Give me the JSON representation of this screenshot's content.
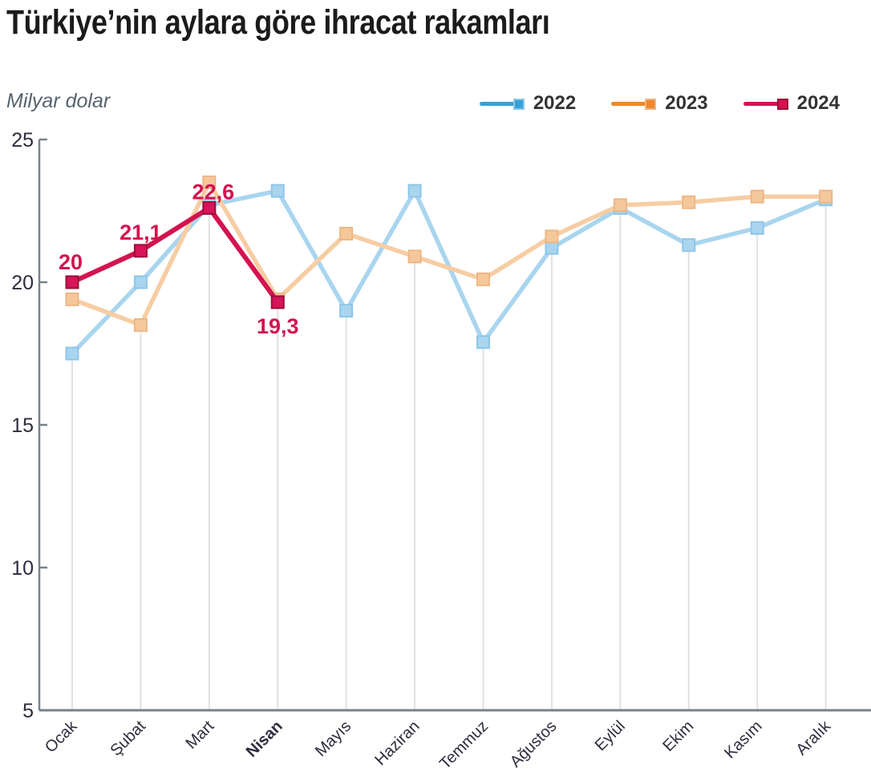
{
  "title": "Türkiye’nin aylara göre ihracat rakamları",
  "chart_data": {
    "type": "line",
    "title": "Türkiye’nin aylara göre ihracat rakamları",
    "ylabel": "Milyar dolar",
    "xlabel": "",
    "ylim": [
      5,
      25
    ],
    "yticks": [
      5,
      10,
      15,
      20,
      25
    ],
    "grid": "droplines-from-lowest-point",
    "legend_position": "top-right",
    "categories": [
      "Ocak",
      "Şubat",
      "Mart",
      "Nisan",
      "Mayıs",
      "Haziran",
      "Temmuz",
      "Ağustos",
      "Eylül",
      "Ekim",
      "Kasım",
      "Aralık"
    ],
    "highlight_category": "Nisan",
    "series": [
      {
        "name": "2022",
        "legend_color": "#35A1D9",
        "line_color": "#A9D5EF",
        "marker_fill": "#A9D5EF",
        "marker_stroke": "#8EC6E8",
        "emphasis": false,
        "values": [
          17.5,
          20.0,
          22.7,
          23.2,
          19.0,
          23.2,
          17.9,
          21.2,
          22.6,
          21.3,
          21.9,
          22.9
        ]
      },
      {
        "name": "2023",
        "legend_color": "#F2862C",
        "line_color": "#F7CDA3",
        "marker_fill": "#F5C89C",
        "marker_stroke": "#EDB685",
        "emphasis": false,
        "values": [
          19.4,
          18.5,
          23.5,
          19.4,
          21.7,
          20.9,
          20.1,
          21.6,
          22.7,
          22.8,
          23.0,
          23.0
        ]
      },
      {
        "name": "2024",
        "legend_color": "#D8114F",
        "line_color": "#D31350",
        "marker_fill": "#D8145A",
        "marker_stroke": "#9C0E38",
        "emphasis": true,
        "values": [
          20.0,
          21.1,
          22.6,
          19.3,
          null,
          null,
          null,
          null,
          null,
          null,
          null,
          null
        ],
        "point_labels": [
          {
            "text": "20",
            "dx": -2,
            "dy": -16
          },
          {
            "text": "21,1",
            "dx": 0,
            "dy": -14
          },
          {
            "text": "22,6",
            "dx": 5,
            "dy": -11
          },
          {
            "text": "19,3",
            "dx": 0,
            "dy": 39
          }
        ]
      }
    ]
  },
  "colors": {
    "title_text": "#1b1b1b",
    "unit_text": "#57626e",
    "legend_text": "#333333",
    "axis": "#79828b",
    "tick_text": "#2d2d3e",
    "dropline": "#e2e2e2",
    "background": "#ffffff",
    "point_label": "#D31350"
  }
}
